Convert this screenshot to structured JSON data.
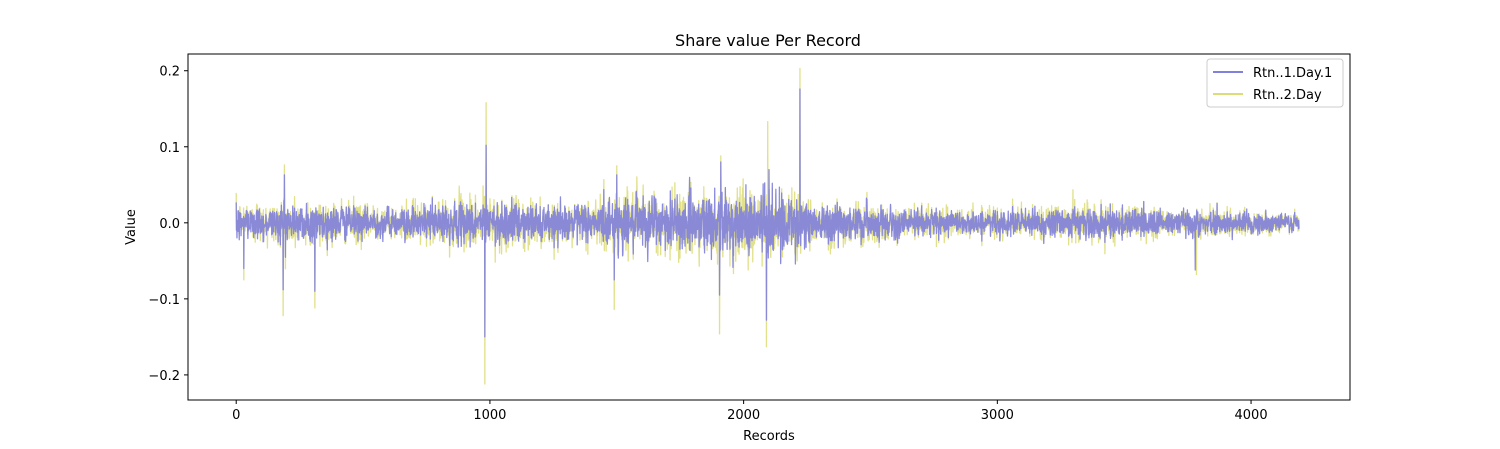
{
  "chart_data": {
    "type": "line",
    "title": "Share value Per Record",
    "xlabel": "Records",
    "ylabel": "Value",
    "xlim": [
      -190,
      4390
    ],
    "ylim": [
      -0.233,
      0.222
    ],
    "x_ticks": [
      0,
      1000,
      2000,
      3000,
      4000
    ],
    "x_tick_labels": [
      "0",
      "1000",
      "2000",
      "3000",
      "4000"
    ],
    "y_ticks": [
      -0.2,
      -0.1,
      0.0,
      0.1,
      0.2
    ],
    "y_tick_labels": [
      "−0.2",
      "−0.1",
      "0.0",
      "0.1",
      "0.2"
    ],
    "grid": false,
    "legend_position": "top-right",
    "n_records": 4190,
    "series": [
      {
        "name": "Rtn..1.Day.1",
        "color": "#8080dd",
        "opacity": 1.0,
        "volatility_profile": [
          [
            0,
            0.012
          ],
          [
            300,
            0.013
          ],
          [
            600,
            0.009
          ],
          [
            980,
            0.016
          ],
          [
            1300,
            0.011
          ],
          [
            1500,
            0.018
          ],
          [
            1800,
            0.019
          ],
          [
            2100,
            0.025
          ],
          [
            2300,
            0.014
          ],
          [
            2600,
            0.01
          ],
          [
            3000,
            0.008
          ],
          [
            3300,
            0.011
          ],
          [
            3700,
            0.009
          ],
          [
            4190,
            0.006
          ]
        ],
        "spikes": [
          [
            30,
            -0.06
          ],
          [
            185,
            -0.088
          ],
          [
            190,
            0.063
          ],
          [
            310,
            -0.09
          ],
          [
            980,
            -0.15
          ],
          [
            985,
            0.102
          ],
          [
            1500,
            0.063
          ],
          [
            1490,
            -0.075
          ],
          [
            1905,
            -0.095
          ],
          [
            1910,
            0.08
          ],
          [
            2090,
            -0.128
          ],
          [
            2100,
            0.07
          ],
          [
            2222,
            0.176
          ],
          [
            2225,
            -0.03
          ],
          [
            3780,
            -0.062
          ]
        ]
      },
      {
        "name": "Rtn..2.Day",
        "color": "#dcdc78",
        "opacity": 0.85,
        "volatility_profile": [
          [
            0,
            0.015
          ],
          [
            300,
            0.016
          ],
          [
            600,
            0.011
          ],
          [
            980,
            0.02
          ],
          [
            1300,
            0.013
          ],
          [
            1500,
            0.022
          ],
          [
            1800,
            0.023
          ],
          [
            2100,
            0.03
          ],
          [
            2300,
            0.017
          ],
          [
            2600,
            0.012
          ],
          [
            3000,
            0.01
          ],
          [
            3300,
            0.014
          ],
          [
            3700,
            0.011
          ],
          [
            4190,
            0.008
          ]
        ],
        "spikes": [
          [
            30,
            -0.075
          ],
          [
            185,
            -0.122
          ],
          [
            190,
            0.076
          ],
          [
            310,
            -0.112
          ],
          [
            980,
            -0.212
          ],
          [
            985,
            0.158
          ],
          [
            1490,
            -0.114
          ],
          [
            1500,
            0.075
          ],
          [
            1905,
            -0.146
          ],
          [
            1910,
            0.088
          ],
          [
            2090,
            -0.163
          ],
          [
            2095,
            0.133
          ],
          [
            2222,
            0.203
          ],
          [
            2225,
            -0.04
          ],
          [
            3785,
            -0.068
          ]
        ]
      }
    ]
  }
}
